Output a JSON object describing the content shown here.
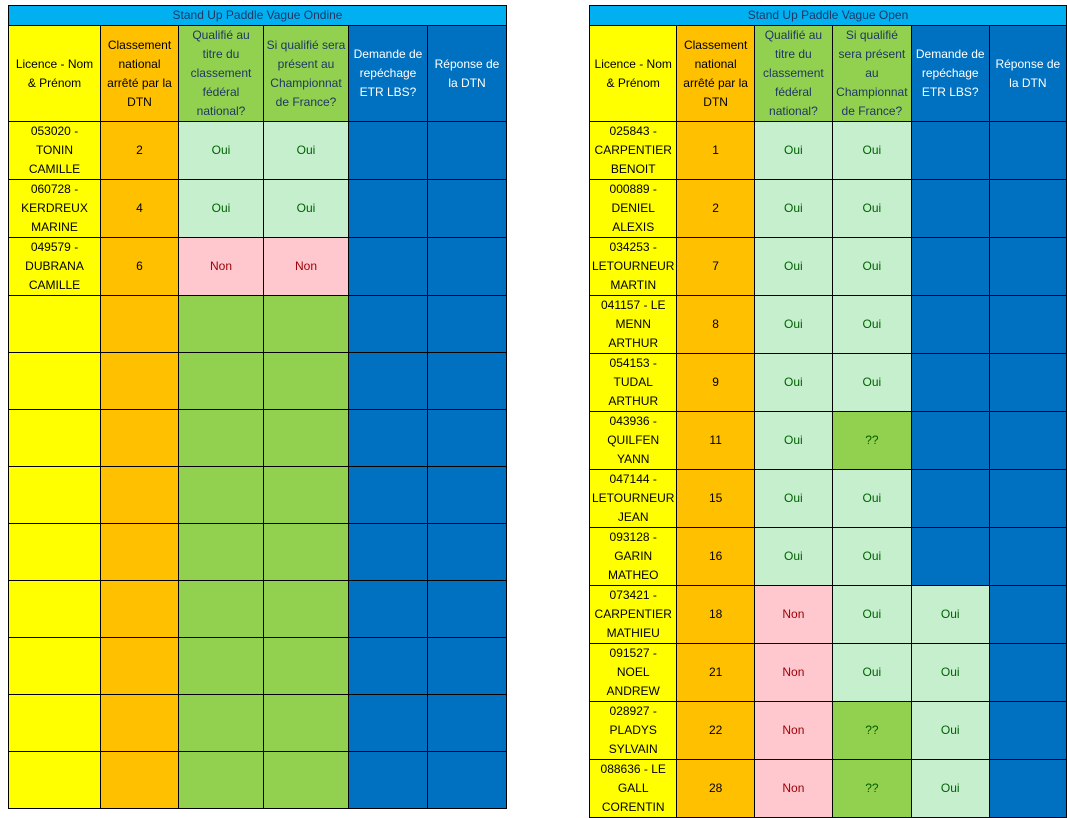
{
  "left_sheet": {
    "title": "Stand Up Paddle Vague Ondine",
    "headers": {
      "licence": "Licence - Nom & Prénom",
      "classement": "Classement national arrêté par la DTN",
      "qualifie": "Qualifié au titre du classement fédéral national?",
      "present": "Si qualifié sera présent au Championnat de France?",
      "repechage": "Demande de repéchage ETR LBS?",
      "reponse": "Réponse de la DTN"
    },
    "rows": [
      {
        "licence": "053020 - TONIN CAMILLE",
        "classement": "2",
        "qualifie": "Oui",
        "present": "Oui",
        "repechage": "",
        "reponse": ""
      },
      {
        "licence": "060728 - KERDREUX MARINE",
        "classement": "4",
        "qualifie": "Oui",
        "present": "Oui",
        "repechage": "",
        "reponse": ""
      },
      {
        "licence": "049579 - DUBRANA CAMILLE",
        "classement": "6",
        "qualifie": "Non",
        "present": "Non",
        "repechage": "",
        "reponse": ""
      },
      {
        "licence": "",
        "classement": "",
        "qualifie": "",
        "present": "",
        "repechage": "",
        "reponse": ""
      },
      {
        "licence": "",
        "classement": "",
        "qualifie": "",
        "present": "",
        "repechage": "",
        "reponse": ""
      },
      {
        "licence": "",
        "classement": "",
        "qualifie": "",
        "present": "",
        "repechage": "",
        "reponse": ""
      },
      {
        "licence": "",
        "classement": "",
        "qualifie": "",
        "present": "",
        "repechage": "",
        "reponse": ""
      },
      {
        "licence": "",
        "classement": "",
        "qualifie": "",
        "present": "",
        "repechage": "",
        "reponse": ""
      },
      {
        "licence": "",
        "classement": "",
        "qualifie": "",
        "present": "",
        "repechage": "",
        "reponse": ""
      },
      {
        "licence": "",
        "classement": "",
        "qualifie": "",
        "present": "",
        "repechage": "",
        "reponse": ""
      },
      {
        "licence": "",
        "classement": "",
        "qualifie": "",
        "present": "",
        "repechage": "",
        "reponse": ""
      },
      {
        "licence": "",
        "classement": "",
        "qualifie": "",
        "present": "",
        "repechage": "",
        "reponse": ""
      }
    ]
  },
  "right_sheet": {
    "title": "Stand Up Paddle Vague Open",
    "headers": {
      "licence": "Licence - Nom & Prénom",
      "classement": "Classement national arrêté par la DTN",
      "qualifie": "Qualifié au titre du classement fédéral national?",
      "present": "Si qualifié sera présent au Championnat de France?",
      "repechage": "Demande de repéchage ETR LBS?",
      "reponse": "Réponse de la DTN"
    },
    "rows": [
      {
        "licence": "025843 - CARPENTIER BENOIT",
        "classement": "1",
        "qualifie": "Oui",
        "present": "Oui",
        "repechage": "",
        "reponse": ""
      },
      {
        "licence": "000889 - DENIEL ALEXIS",
        "classement": "2",
        "qualifie": "Oui",
        "present": "Oui",
        "repechage": "",
        "reponse": ""
      },
      {
        "licence": "034253 - LETOURNEUR MARTIN",
        "classement": "7",
        "qualifie": "Oui",
        "present": "Oui",
        "repechage": "",
        "reponse": ""
      },
      {
        "licence": "041157 - LE MENN ARTHUR",
        "classement": "8",
        "qualifie": "Oui",
        "present": "Oui",
        "repechage": "",
        "reponse": ""
      },
      {
        "licence": "054153 - TUDAL ARTHUR",
        "classement": "9",
        "qualifie": "Oui",
        "present": "Oui",
        "repechage": "",
        "reponse": ""
      },
      {
        "licence": "043936 - QUILFEN YANN",
        "classement": "11",
        "qualifie": "Oui",
        "present": "??",
        "repechage": "",
        "reponse": ""
      },
      {
        "licence": "047144 - LETOURNEUR JEAN",
        "classement": "15",
        "qualifie": "Oui",
        "present": "Oui",
        "repechage": "",
        "reponse": ""
      },
      {
        "licence": "093128 - GARIN MATHEO",
        "classement": "16",
        "qualifie": "Oui",
        "present": "Oui",
        "repechage": "",
        "reponse": ""
      },
      {
        "licence": "073421 - CARPENTIER MATHIEU",
        "classement": "18",
        "qualifie": "Non",
        "present": "Oui",
        "repechage": "Oui",
        "reponse": ""
      },
      {
        "licence": "091527 - NOEL ANDREW",
        "classement": "21",
        "qualifie": "Non",
        "present": "Oui",
        "repechage": "Oui",
        "reponse": ""
      },
      {
        "licence": "028927 - PLADYS SYLVAIN",
        "classement": "22",
        "qualifie": "Non",
        "present": "??",
        "repechage": "Oui",
        "reponse": ""
      },
      {
        "licence": "088636 - LE GALL CORENTIN",
        "classement": "28",
        "qualifie": "Non",
        "present": "??",
        "repechage": "Oui",
        "reponse": ""
      }
    ]
  },
  "colors": {
    "title_bg": "#00B0F0",
    "licence_col": "#FFFF00",
    "classement_col": "#FFC000",
    "green_col": "#92D050",
    "oui_bg": "#C6EFCE",
    "non_bg": "#FFC7CE",
    "blue_col": "#0070C0"
  }
}
